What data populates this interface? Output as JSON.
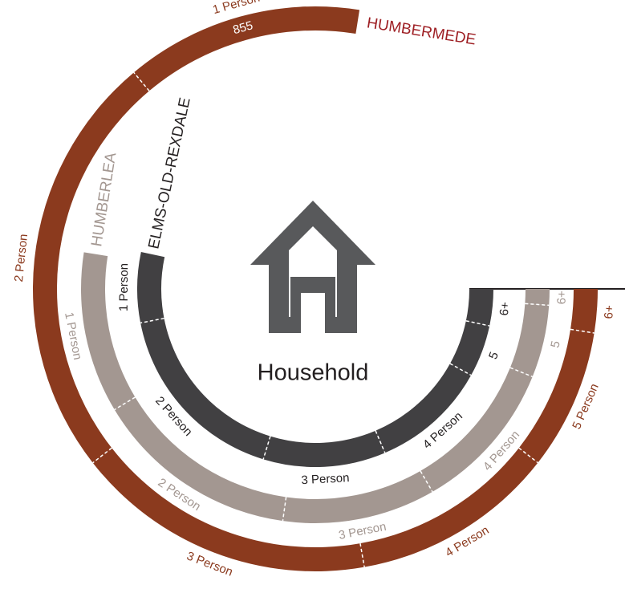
{
  "chart_data": {
    "type": "radial_stacked",
    "center_label": "Household",
    "series": [
      {
        "name": "ELMS-OLD-REXDALE",
        "color": "#414042",
        "label_color": "#231f20",
        "labels": [
          "6+",
          "5",
          "4 Person",
          "3 Person",
          "2 Person",
          "1 Person"
        ],
        "values": [
          209,
          297,
          663,
          698,
          1082,
          401
        ]
      },
      {
        "name": "HUMBERLEA",
        "color": "#a39791",
        "label_color": "#a39791",
        "labels": [
          "6+",
          "5",
          "4 Person",
          "3 Person",
          "2 Person",
          "1 Person"
        ],
        "values": [
          70,
          314,
          663,
          663,
          890,
          698
        ]
      },
      {
        "name": "HUMBERMEDE",
        "color": "#8b3a1e",
        "label_color": "#8b3a1e",
        "name_color": "#9e1f24",
        "labels": [
          "6+",
          "5 Person",
          "4 Person",
          "3 Person",
          "2 Person",
          "1 Person"
        ],
        "values": [
          157,
          506,
          733,
          1082,
          1536,
          855
        ],
        "value_labels": [
          null,
          null,
          null,
          null,
          null,
          "855"
        ]
      }
    ]
  }
}
